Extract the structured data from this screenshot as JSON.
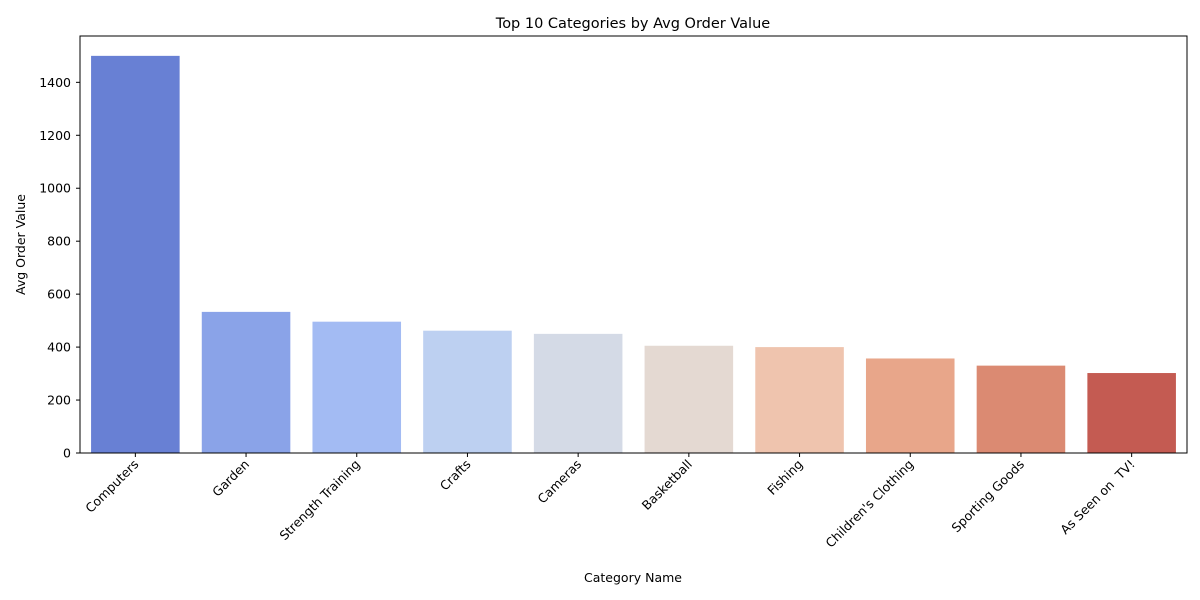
{
  "chart_data": {
    "type": "bar",
    "title": "Top 10 Categories by Avg Order Value",
    "xlabel": "Category Name",
    "ylabel": "Avg Order Value",
    "categories": [
      "Computers",
      "Garden",
      "Strength Training",
      "Crafts",
      "Cameras",
      "Basketball",
      "Fishing",
      "Children's Clothing",
      "Sporting Goods",
      "As Seen on  TV!"
    ],
    "values": [
      1500,
      533,
      496,
      462,
      450,
      405,
      400,
      357,
      330,
      302
    ],
    "colors": [
      "#6880d4",
      "#8aa3e8",
      "#a3bbf3",
      "#bdd0f1",
      "#d4dae6",
      "#e4d9d2",
      "#efc4ae",
      "#e8a68a",
      "#db8a72",
      "#c45b52"
    ],
    "ylim": [
      0,
      1575
    ],
    "yticks": [
      0,
      200,
      400,
      600,
      800,
      1000,
      1200,
      1400
    ],
    "grid": false,
    "legend": "none"
  }
}
